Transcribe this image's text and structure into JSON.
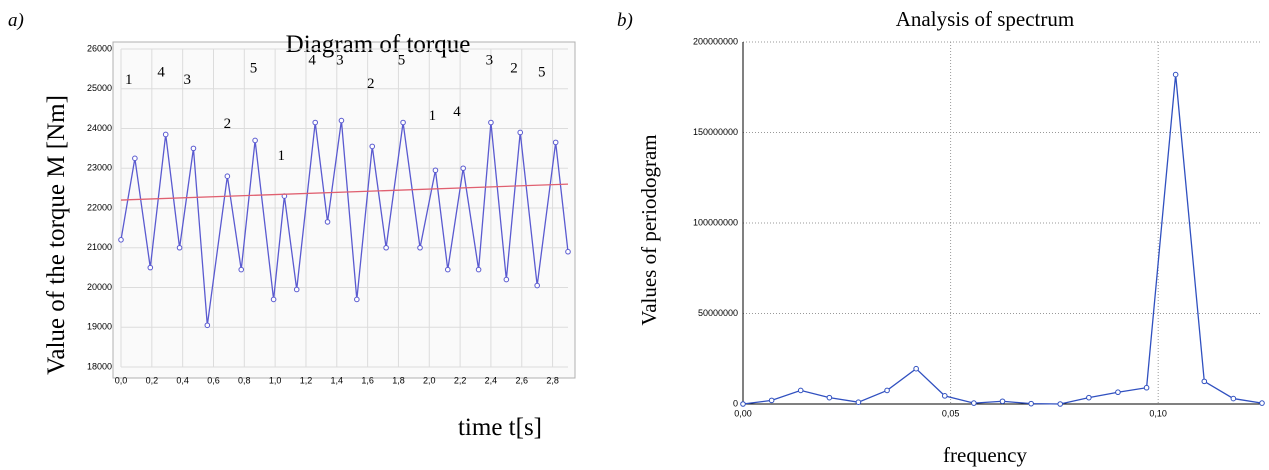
{
  "chart_data": [
    {
      "type": "line",
      "panel_label": "a)",
      "title": "Diagram of torque",
      "y_label": "Value of the torque M [Nm]",
      "x_label": "time  t[s]",
      "x": [
        0,
        0.09,
        0.19,
        0.29,
        0.38,
        0.47,
        0.56,
        0.69,
        0.78,
        0.87,
        0.99,
        1.06,
        1.14,
        1.26,
        1.34,
        1.43,
        1.53,
        1.63,
        1.72,
        1.83,
        1.94,
        2.04,
        2.12,
        2.22,
        2.32,
        2.4,
        2.5,
        2.59,
        2.7,
        2.82,
        2.9
      ],
      "series": [
        {
          "color": "#5a5ad0",
          "markers": true,
          "values": [
            21200,
            23250,
            20500,
            23850,
            21000,
            23500,
            19050,
            22800,
            20450,
            23700,
            19700,
            22300,
            19950,
            24150,
            21650,
            24200,
            19700,
            23550,
            21000,
            24150,
            21000,
            22950,
            20450,
            23000,
            20450,
            24150,
            20200,
            23900,
            20050,
            23650,
            20900
          ]
        },
        {
          "color": "#e06070",
          "markers": false,
          "x": [
            0,
            2.9
          ],
          "values": [
            22200,
            22600
          ]
        }
      ],
      "annotations": [
        {
          "text": "1",
          "x": 0.05,
          "y": 25200
        },
        {
          "text": "4",
          "x": 0.26,
          "y": 25400
        },
        {
          "text": "3",
          "x": 0.43,
          "y": 25200
        },
        {
          "text": "2",
          "x": 0.69,
          "y": 24100
        },
        {
          "text": "5",
          "x": 0.86,
          "y": 25500
        },
        {
          "text": "1",
          "x": 1.04,
          "y": 23300
        },
        {
          "text": "4",
          "x": 1.24,
          "y": 25700
        },
        {
          "text": "3",
          "x": 1.42,
          "y": 25700
        },
        {
          "text": "2",
          "x": 1.62,
          "y": 25100
        },
        {
          "text": "5",
          "x": 1.82,
          "y": 25700
        },
        {
          "text": "1",
          "x": 2.02,
          "y": 24300
        },
        {
          "text": "4",
          "x": 2.18,
          "y": 24400
        },
        {
          "text": "3",
          "x": 2.39,
          "y": 25700
        },
        {
          "text": "2",
          "x": 2.55,
          "y": 25500
        },
        {
          "text": "5",
          "x": 2.73,
          "y": 25400
        }
      ],
      "xlim": [
        0,
        2.9
      ],
      "ylim": [
        18000,
        26000
      ],
      "xticks": [
        {
          "value": 0,
          "label": "0,0"
        },
        {
          "value": 0.2,
          "label": "0,2"
        },
        {
          "value": 0.4,
          "label": "0,4"
        },
        {
          "value": 0.6,
          "label": "0,6"
        },
        {
          "value": 0.8,
          "label": "0,8"
        },
        {
          "value": 1.0,
          "label": "1,0"
        },
        {
          "value": 1.2,
          "label": "1,2"
        },
        {
          "value": 1.4,
          "label": "1,4"
        },
        {
          "value": 1.6,
          "label": "1,6"
        },
        {
          "value": 1.8,
          "label": "1,8"
        },
        {
          "value": 2.0,
          "label": "2,0"
        },
        {
          "value": 2.2,
          "label": "2,2"
        },
        {
          "value": 2.4,
          "label": "2,4"
        },
        {
          "value": 2.6,
          "label": "2,6"
        },
        {
          "value": 2.8,
          "label": "2,8"
        }
      ],
      "yticks": [
        18000,
        19000,
        20000,
        21000,
        22000,
        23000,
        24000,
        25000,
        26000
      ],
      "grid": "solid"
    },
    {
      "type": "line",
      "panel_label": "b)",
      "title": "Analysis of spectrum",
      "y_label": "Values of periodogram",
      "x_label": "frequency",
      "x": [
        0,
        0.0069,
        0.0139,
        0.0208,
        0.0278,
        0.0347,
        0.0417,
        0.0486,
        0.0556,
        0.0625,
        0.0694,
        0.0764,
        0.0833,
        0.0903,
        0.0972,
        0.1042,
        0.1111,
        0.1181,
        0.125
      ],
      "series": [
        {
          "color": "#3050c0",
          "markers": true,
          "values": [
            0,
            2000000,
            7500000,
            3500000,
            1000000,
            7500000,
            19500000,
            4500000,
            500000,
            1500000,
            200000,
            0,
            3500000,
            6500000,
            9000000,
            182000000,
            12500000,
            3000000,
            500000
          ]
        }
      ],
      "xlim": [
        0,
        0.125
      ],
      "ylim": [
        0,
        200000000
      ],
      "xticks": [
        {
          "value": 0,
          "label": "0,00"
        },
        {
          "value": 0.05,
          "label": "0,05"
        },
        {
          "value": 0.1,
          "label": "0,10"
        }
      ],
      "yticks": [
        0,
        50000000,
        100000000,
        150000000,
        200000000
      ],
      "grid": "dotted"
    }
  ]
}
